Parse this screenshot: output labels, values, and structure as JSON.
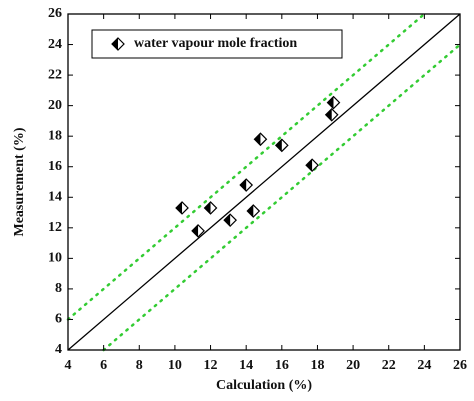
{
  "chart_data": {
    "type": "scatter",
    "x_label": "Calculation (%)",
    "y_label": "Measurement (%)",
    "xlim": [
      4,
      26
    ],
    "ylim": [
      4,
      26
    ],
    "xticks": [
      4,
      6,
      8,
      10,
      12,
      14,
      16,
      18,
      20,
      22,
      24,
      26
    ],
    "yticks": [
      4,
      6,
      8,
      10,
      12,
      14,
      16,
      18,
      20,
      22,
      24,
      26
    ],
    "legend": "upper left",
    "series": [
      {
        "name": "water vapour mole fraction",
        "color": "#000000",
        "x": [
          10.4,
          11.3,
          12.0,
          13.1,
          14.0,
          14.4,
          14.8,
          16.0,
          17.7,
          18.8,
          18.9
        ],
        "values": [
          13.3,
          11.8,
          13.3,
          12.5,
          14.8,
          13.1,
          17.8,
          17.4,
          16.1,
          19.4,
          20.2
        ]
      }
    ],
    "reference_lines": [
      {
        "slope": 1,
        "intercept": 0,
        "style": "solid",
        "color": "#000000"
      },
      {
        "slope": 1,
        "intercept": 2,
        "style": "dotted",
        "color": "#33cc33"
      },
      {
        "slope": 1,
        "intercept": -2,
        "style": "dotted",
        "color": "#33cc33"
      }
    ]
  }
}
